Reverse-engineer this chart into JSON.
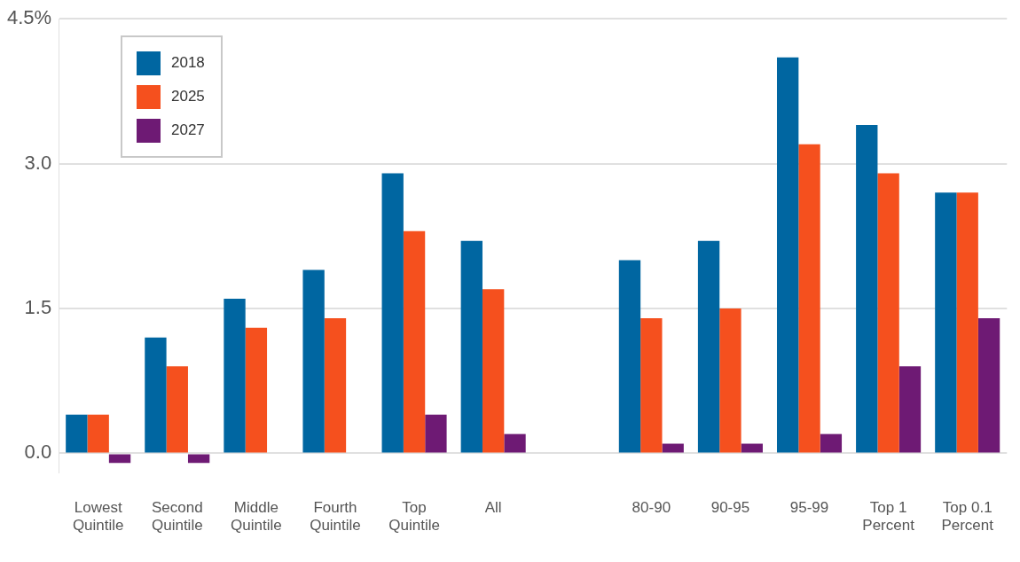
{
  "chart_data": {
    "type": "bar",
    "categories": [
      "Lowest Quintile",
      "Second Quintile",
      "Middle Quintile",
      "Fourth Quintile",
      "Top Quintile",
      "All",
      null,
      "80-90",
      "90-95",
      "95-99",
      "Top 1 Percent",
      "Top 0.1 Percent"
    ],
    "series": [
      {
        "name": "2018",
        "color": "#0066a1",
        "values": [
          0.4,
          1.2,
          1.6,
          1.9,
          2.9,
          2.2,
          null,
          2.0,
          2.2,
          4.1,
          3.4,
          2.7
        ]
      },
      {
        "name": "2025",
        "color": "#f5501e",
        "values": [
          0.4,
          0.9,
          1.3,
          1.4,
          2.3,
          1.7,
          null,
          1.4,
          1.5,
          3.2,
          2.9,
          2.7
        ]
      },
      {
        "name": "2027",
        "color": "#6e1a74",
        "values": [
          -0.1,
          -0.1,
          null,
          null,
          0.4,
          0.2,
          null,
          0.1,
          0.1,
          0.2,
          0.9,
          1.4
        ]
      }
    ],
    "ylim": [
      -0.2,
      4.5
    ],
    "yticks": [
      {
        "value": 0,
        "label": "0.0"
      },
      {
        "value": 1.5,
        "label": "1.5"
      },
      {
        "value": 3,
        "label": "3.0"
      },
      {
        "value": 4.5,
        "label": "4.5%"
      }
    ],
    "grid": "y",
    "legend": "top left"
  }
}
